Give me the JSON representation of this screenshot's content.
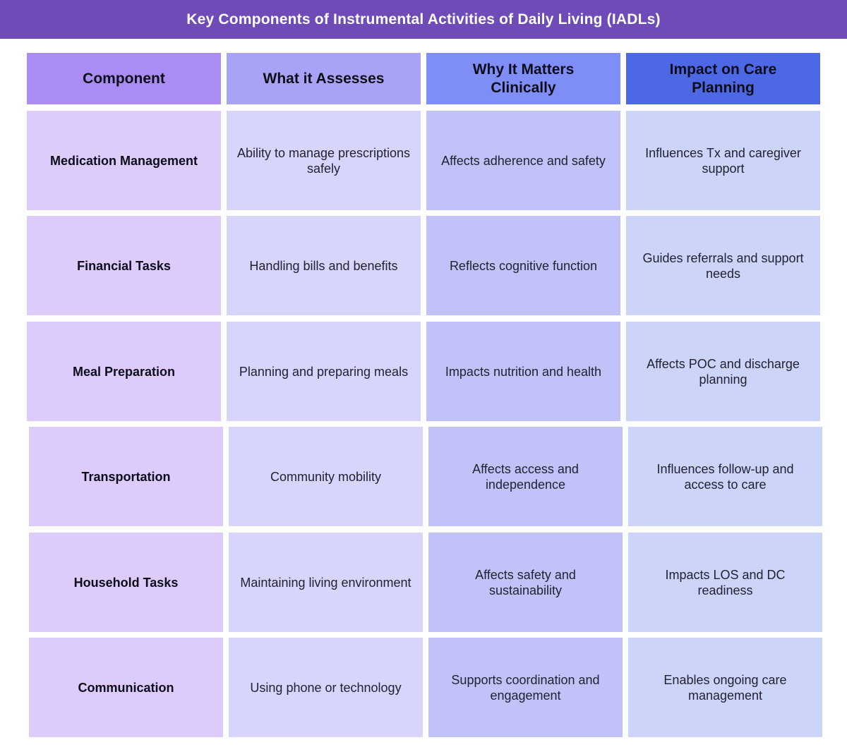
{
  "title": "Key Components of Instrumental Activities of Daily Living (IADLs)",
  "headers": [
    "Component",
    "What it Assesses",
    "Why It Matters Clinically",
    "Impact on Care Planning"
  ],
  "rows": [
    [
      "Medication Management",
      "Ability to manage prescriptions safely",
      "Affects adherence and safety",
      "Influences Tx and caregiver support"
    ],
    [
      "Financial Tasks",
      "Handling bills and benefits",
      "Reflects cognitive function",
      "Guides referrals and support needs"
    ],
    [
      "Meal Preparation",
      "Planning and preparing meals",
      "Impacts nutrition and health",
      "Affects POC and discharge planning"
    ],
    [
      "Transportation",
      "Community mobility",
      "Affects access and independence",
      "Influences follow-up and access to care"
    ],
    [
      "Household Tasks",
      "Maintaining living environment",
      "Affects safety and sustainability",
      "Impacts LOS and DC readiness"
    ],
    [
      "Communication",
      "Using phone or technology",
      "Supports coordination and engagement",
      "Enables ongoing care management"
    ]
  ],
  "colors": {
    "title_bar": "#6f4bb8",
    "header_col1": "#ab8cf3",
    "header_col2": "#a9a3f5",
    "header_col3": "#7f8ef6",
    "header_col4": "#4d68e4",
    "cell_col1": "#dccbfb",
    "cell_col2": "#d8d5fc",
    "cell_col3": "#c1c3f8",
    "cell_col4": "#ccd4f9"
  }
}
